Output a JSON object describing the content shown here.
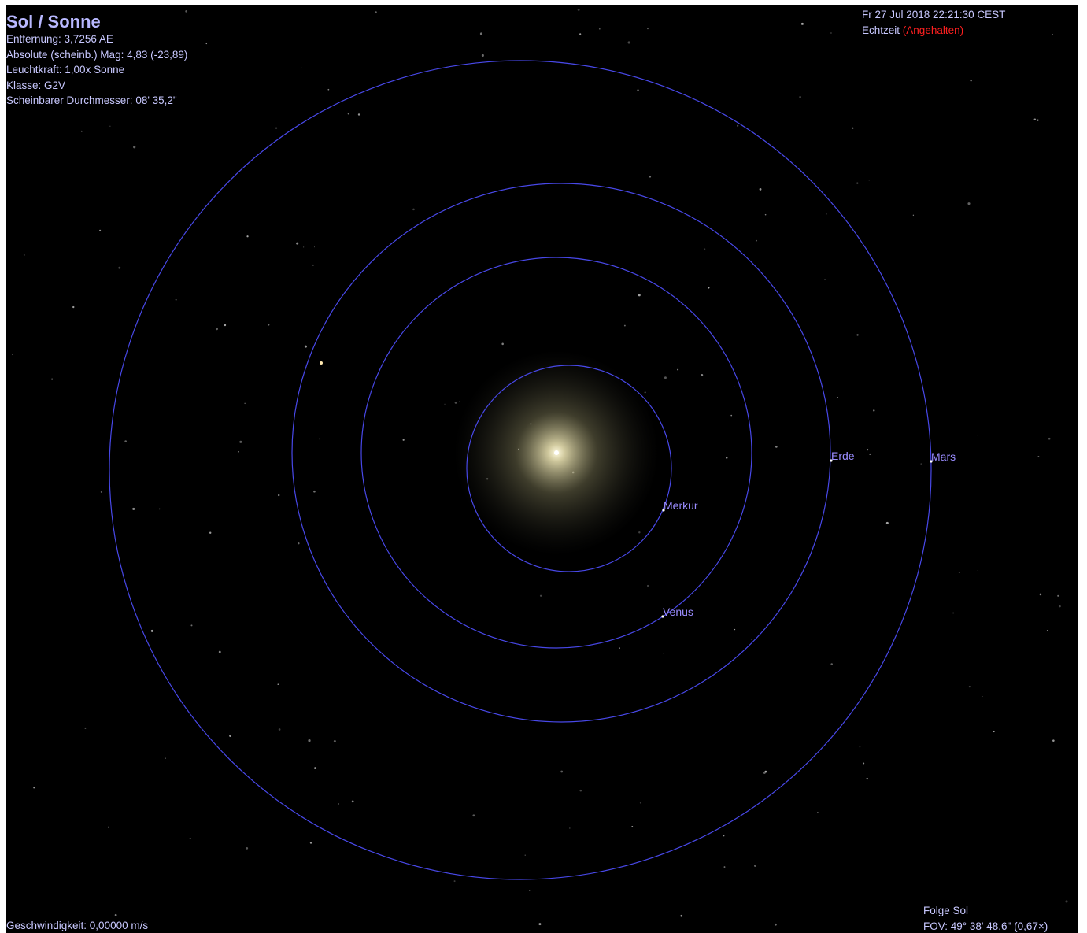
{
  "info": {
    "title": "Sol / Sonne",
    "lines": [
      "Entfernung: 3,7256 AE",
      "Absolute (scheinb.) Mag: 4,83 (-23,89)",
      "Leuchtkraft: 1,00x Sonne",
      "Klasse: G2V",
      "Scheinbarer Durchmesser: 08' 35,2\""
    ]
  },
  "clock": {
    "datetime": "Fr 27 Jul 2018 22:21:30 CEST",
    "mode": "Echtzeit",
    "status": "(Angehalten)"
  },
  "planets": [
    {
      "label": "Merkur"
    },
    {
      "label": "Venus"
    },
    {
      "label": "Erde"
    },
    {
      "label": "Mars"
    }
  ],
  "status": {
    "speed": "Geschwindigkeit: 0,00000 m/s",
    "follow": "Folge Sol",
    "fov": "FOV: 49° 38' 48,6\" (0,67×)"
  }
}
